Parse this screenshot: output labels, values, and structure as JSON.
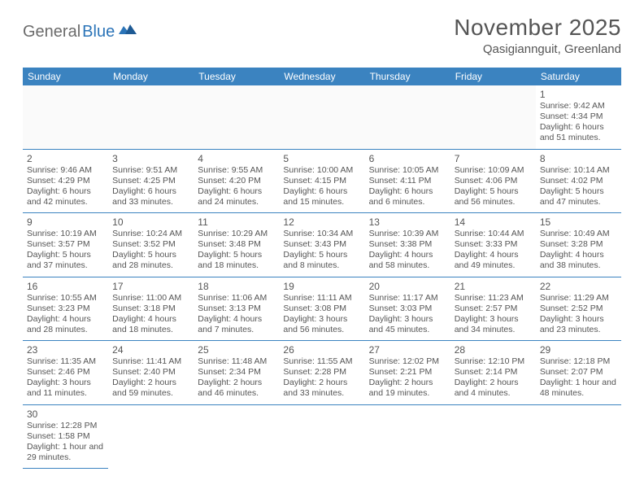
{
  "logo": {
    "gray": "General",
    "blue": "Blue"
  },
  "title": "November 2025",
  "location": "Qasigiannguit, Greenland",
  "columns": [
    "Sunday",
    "Monday",
    "Tuesday",
    "Wednesday",
    "Thursday",
    "Friday",
    "Saturday"
  ],
  "colors": {
    "header_bg": "#3b83c0",
    "header_fg": "#ffffff",
    "rule": "#3b83c0",
    "text": "#555555",
    "logo_gray": "#6b6b6b",
    "logo_blue": "#2b74b8"
  },
  "weeks": [
    [
      null,
      null,
      null,
      null,
      null,
      null,
      {
        "d": "1",
        "sr": "Sunrise: 9:42 AM",
        "ss": "Sunset: 4:34 PM",
        "dl": "Daylight: 6 hours and 51 minutes."
      }
    ],
    [
      {
        "d": "2",
        "sr": "Sunrise: 9:46 AM",
        "ss": "Sunset: 4:29 PM",
        "dl": "Daylight: 6 hours and 42 minutes."
      },
      {
        "d": "3",
        "sr": "Sunrise: 9:51 AM",
        "ss": "Sunset: 4:25 PM",
        "dl": "Daylight: 6 hours and 33 minutes."
      },
      {
        "d": "4",
        "sr": "Sunrise: 9:55 AM",
        "ss": "Sunset: 4:20 PM",
        "dl": "Daylight: 6 hours and 24 minutes."
      },
      {
        "d": "5",
        "sr": "Sunrise: 10:00 AM",
        "ss": "Sunset: 4:15 PM",
        "dl": "Daylight: 6 hours and 15 minutes."
      },
      {
        "d": "6",
        "sr": "Sunrise: 10:05 AM",
        "ss": "Sunset: 4:11 PM",
        "dl": "Daylight: 6 hours and 6 minutes."
      },
      {
        "d": "7",
        "sr": "Sunrise: 10:09 AM",
        "ss": "Sunset: 4:06 PM",
        "dl": "Daylight: 5 hours and 56 minutes."
      },
      {
        "d": "8",
        "sr": "Sunrise: 10:14 AM",
        "ss": "Sunset: 4:02 PM",
        "dl": "Daylight: 5 hours and 47 minutes."
      }
    ],
    [
      {
        "d": "9",
        "sr": "Sunrise: 10:19 AM",
        "ss": "Sunset: 3:57 PM",
        "dl": "Daylight: 5 hours and 37 minutes."
      },
      {
        "d": "10",
        "sr": "Sunrise: 10:24 AM",
        "ss": "Sunset: 3:52 PM",
        "dl": "Daylight: 5 hours and 28 minutes."
      },
      {
        "d": "11",
        "sr": "Sunrise: 10:29 AM",
        "ss": "Sunset: 3:48 PM",
        "dl": "Daylight: 5 hours and 18 minutes."
      },
      {
        "d": "12",
        "sr": "Sunrise: 10:34 AM",
        "ss": "Sunset: 3:43 PM",
        "dl": "Daylight: 5 hours and 8 minutes."
      },
      {
        "d": "13",
        "sr": "Sunrise: 10:39 AM",
        "ss": "Sunset: 3:38 PM",
        "dl": "Daylight: 4 hours and 58 minutes."
      },
      {
        "d": "14",
        "sr": "Sunrise: 10:44 AM",
        "ss": "Sunset: 3:33 PM",
        "dl": "Daylight: 4 hours and 49 minutes."
      },
      {
        "d": "15",
        "sr": "Sunrise: 10:49 AM",
        "ss": "Sunset: 3:28 PM",
        "dl": "Daylight: 4 hours and 38 minutes."
      }
    ],
    [
      {
        "d": "16",
        "sr": "Sunrise: 10:55 AM",
        "ss": "Sunset: 3:23 PM",
        "dl": "Daylight: 4 hours and 28 minutes."
      },
      {
        "d": "17",
        "sr": "Sunrise: 11:00 AM",
        "ss": "Sunset: 3:18 PM",
        "dl": "Daylight: 4 hours and 18 minutes."
      },
      {
        "d": "18",
        "sr": "Sunrise: 11:06 AM",
        "ss": "Sunset: 3:13 PM",
        "dl": "Daylight: 4 hours and 7 minutes."
      },
      {
        "d": "19",
        "sr": "Sunrise: 11:11 AM",
        "ss": "Sunset: 3:08 PM",
        "dl": "Daylight: 3 hours and 56 minutes."
      },
      {
        "d": "20",
        "sr": "Sunrise: 11:17 AM",
        "ss": "Sunset: 3:03 PM",
        "dl": "Daylight: 3 hours and 45 minutes."
      },
      {
        "d": "21",
        "sr": "Sunrise: 11:23 AM",
        "ss": "Sunset: 2:57 PM",
        "dl": "Daylight: 3 hours and 34 minutes."
      },
      {
        "d": "22",
        "sr": "Sunrise: 11:29 AM",
        "ss": "Sunset: 2:52 PM",
        "dl": "Daylight: 3 hours and 23 minutes."
      }
    ],
    [
      {
        "d": "23",
        "sr": "Sunrise: 11:35 AM",
        "ss": "Sunset: 2:46 PM",
        "dl": "Daylight: 3 hours and 11 minutes."
      },
      {
        "d": "24",
        "sr": "Sunrise: 11:41 AM",
        "ss": "Sunset: 2:40 PM",
        "dl": "Daylight: 2 hours and 59 minutes."
      },
      {
        "d": "25",
        "sr": "Sunrise: 11:48 AM",
        "ss": "Sunset: 2:34 PM",
        "dl": "Daylight: 2 hours and 46 minutes."
      },
      {
        "d": "26",
        "sr": "Sunrise: 11:55 AM",
        "ss": "Sunset: 2:28 PM",
        "dl": "Daylight: 2 hours and 33 minutes."
      },
      {
        "d": "27",
        "sr": "Sunrise: 12:02 PM",
        "ss": "Sunset: 2:21 PM",
        "dl": "Daylight: 2 hours and 19 minutes."
      },
      {
        "d": "28",
        "sr": "Sunrise: 12:10 PM",
        "ss": "Sunset: 2:14 PM",
        "dl": "Daylight: 2 hours and 4 minutes."
      },
      {
        "d": "29",
        "sr": "Sunrise: 12:18 PM",
        "ss": "Sunset: 2:07 PM",
        "dl": "Daylight: 1 hour and 48 minutes."
      }
    ],
    [
      {
        "d": "30",
        "sr": "Sunrise: 12:28 PM",
        "ss": "Sunset: 1:58 PM",
        "dl": "Daylight: 1 hour and 29 minutes."
      },
      "blank",
      "blank",
      "blank",
      "blank",
      "blank",
      "blank"
    ]
  ]
}
